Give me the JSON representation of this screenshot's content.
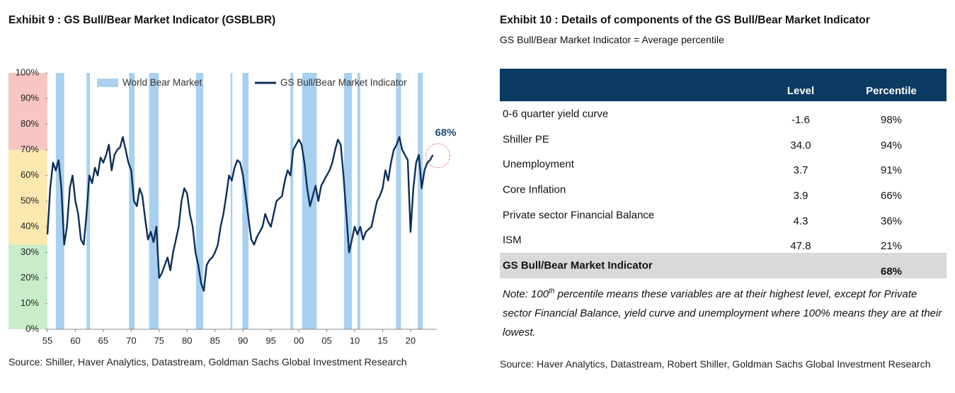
{
  "chart_data": {
    "type": "line",
    "title": "Exhibit 9 : GS Bull/Bear Market Indicator (GSBLBR)",
    "source": "Source: Shiller, Haver Analytics, Datastream, Goldman Sachs Global Investment Research",
    "xlim": [
      1955,
      2024.7
    ],
    "xticks": [
      {
        "value": 1955,
        "label": "55"
      },
      {
        "value": 1960,
        "label": "60"
      },
      {
        "value": 1965,
        "label": "65"
      },
      {
        "value": 1970,
        "label": "70"
      },
      {
        "value": 1975,
        "label": "75"
      },
      {
        "value": 1980,
        "label": "80"
      },
      {
        "value": 1985,
        "label": "85"
      },
      {
        "value": 1990,
        "label": "90"
      },
      {
        "value": 1995,
        "label": "95"
      },
      {
        "value": 2000,
        "label": "00"
      },
      {
        "value": 2005,
        "label": "05"
      },
      {
        "value": 2010,
        "label": "10"
      },
      {
        "value": 2015,
        "label": "15"
      },
      {
        "value": 2020,
        "label": "20"
      }
    ],
    "ylim": [
      0,
      100
    ],
    "yticks": [
      {
        "value": 0,
        "label": "0%"
      },
      {
        "value": 10,
        "label": "10%"
      },
      {
        "value": 20,
        "label": "20%"
      },
      {
        "value": 30,
        "label": "30%"
      },
      {
        "value": 40,
        "label": "40%"
      },
      {
        "value": 50,
        "label": "50%"
      },
      {
        "value": 60,
        "label": "60%"
      },
      {
        "value": 70,
        "label": "70%"
      },
      {
        "value": 80,
        "label": "80%"
      },
      {
        "value": 90,
        "label": "90%"
      },
      {
        "value": 100,
        "label": "100%"
      }
    ],
    "zones": [
      {
        "from": 0,
        "to": 33,
        "color": "#c9ecc9"
      },
      {
        "from": 33,
        "to": 70,
        "color": "#fde9b0"
      },
      {
        "from": 70,
        "to": 100,
        "color": "#f7c6c3"
      }
    ],
    "bear_markets": {
      "name": "World Bear Market",
      "color": "#a9d0ef",
      "ranges": [
        [
          1956.5,
          1958
        ],
        [
          1962,
          1962.6
        ],
        [
          1969.6,
          1970.6
        ],
        [
          1973.2,
          1974.9
        ],
        [
          1981.6,
          1982.9
        ],
        [
          1987.8,
          1988.1
        ],
        [
          1989.9,
          1991
        ],
        [
          1998.5,
          1999
        ],
        [
          2000.6,
          2003.2
        ],
        [
          2008.1,
          2009.5
        ],
        [
          2010.5,
          2011
        ],
        [
          2017.4,
          2018.3
        ],
        [
          2021.3,
          2022.2
        ]
      ]
    },
    "x": [
      1955,
      1955.5,
      1956,
      1956.5,
      1957,
      1957.5,
      1958,
      1958.5,
      1959,
      1959.5,
      1960,
      1960.5,
      1961,
      1961.5,
      1962,
      1962.5,
      1963,
      1963.5,
      1964,
      1964.5,
      1965,
      1965.5,
      1966,
      1966.5,
      1967,
      1967.5,
      1968,
      1968.5,
      1969,
      1969.5,
      1970,
      1970.5,
      1971,
      1971.5,
      1972,
      1972.5,
      1973,
      1973.5,
      1974,
      1974.5,
      1975,
      1975.5,
      1976,
      1976.5,
      1977,
      1977.5,
      1978,
      1978.5,
      1979,
      1979.5,
      1980,
      1980.5,
      1981,
      1981.5,
      1982,
      1982.5,
      1983,
      1983.5,
      1984,
      1984.5,
      1985,
      1985.5,
      1986,
      1986.5,
      1987,
      1987.5,
      1988,
      1988.5,
      1989,
      1989.5,
      1990,
      1990.5,
      1991,
      1991.5,
      1992,
      1992.5,
      1993,
      1993.5,
      1994,
      1994.5,
      1995,
      1995.5,
      1996,
      1996.5,
      1997,
      1997.5,
      1998,
      1998.5,
      1999,
      1999.5,
      2000,
      2000.5,
      2001,
      2001.5,
      2002,
      2002.5,
      2003,
      2003.5,
      2004,
      2004.5,
      2005,
      2005.5,
      2006,
      2006.5,
      2007,
      2007.5,
      2008,
      2008.5,
      2009,
      2009.5,
      2010,
      2010.5,
      2011,
      2011.5,
      2012,
      2012.5,
      2013,
      2013.5,
      2014,
      2014.5,
      2015,
      2015.5,
      2016,
      2016.5,
      2017,
      2017.5,
      2018,
      2018.5,
      2019,
      2019.5,
      2020,
      2020.5,
      2021,
      2021.5,
      2022,
      2022.5,
      2023,
      2023.5,
      2024
    ],
    "series": [
      {
        "name": "GS Bull/Bear Market Indicator",
        "color": "#0d2f5a",
        "values": [
          37,
          55,
          65,
          62,
          66,
          55,
          33,
          40,
          55,
          60,
          50,
          45,
          35,
          33,
          45,
          60,
          57,
          63,
          60,
          67,
          65,
          68,
          72,
          62,
          68,
          70,
          71,
          75,
          70,
          65,
          62,
          50,
          48,
          55,
          52,
          43,
          35,
          38,
          34,
          40,
          20,
          22,
          25,
          28,
          23,
          30,
          35,
          40,
          50,
          55,
          53,
          45,
          40,
          30,
          25,
          18,
          15,
          25,
          27,
          28,
          30,
          33,
          40,
          45,
          52,
          60,
          58,
          63,
          66,
          65,
          60,
          52,
          43,
          35,
          33,
          36,
          38,
          40,
          45,
          42,
          40,
          45,
          50,
          51,
          52,
          58,
          62,
          60,
          70,
          72,
          74,
          72,
          65,
          55,
          48,
          52,
          56,
          50,
          56,
          58,
          60,
          62,
          65,
          70,
          74,
          72,
          60,
          45,
          30,
          35,
          40,
          37,
          40,
          35,
          38,
          39,
          40,
          45,
          50,
          52,
          55,
          62,
          58,
          65,
          70,
          72,
          75,
          70,
          68,
          66,
          38,
          55,
          65,
          68,
          55,
          62,
          65,
          66,
          68
        ]
      }
    ],
    "annotations": [
      {
        "x": 2024,
        "y": 68,
        "label": "68%"
      }
    ]
  },
  "table": {
    "title": "Exhibit 10 : Details of components of the GS Bull/Bear Market Indicator",
    "subtitle": "GS Bull/Bear Market Indicator = Average percentile",
    "columns": [
      "Level",
      "Percentile"
    ],
    "rows": [
      {
        "label": "0-6 quarter yield curve",
        "level": "-1.6",
        "percentile": "98%"
      },
      {
        "label": "Shiller PE",
        "level": "34.0",
        "percentile": "94%"
      },
      {
        "label": "Unemployment",
        "level": "3.7",
        "percentile": "91%"
      },
      {
        "label": "Core Inflation",
        "level": "3.9",
        "percentile": "66%"
      },
      {
        "label": "Private sector Financial Balance",
        "level": "4.3",
        "percentile": "36%"
      },
      {
        "label": "ISM",
        "level": "47.8",
        "percentile": "21%"
      },
      {
        "label": "GS Bull/Bear Market Indicator",
        "percentile": "68%"
      }
    ],
    "note": {
      "before": "Note: 100",
      "sup": "th",
      "after": " percentile means these variables are at their highest level, except for Private sector Financial Balance, yield curve and unemployment where 100% means they are at their lowest."
    },
    "source": "Source: Haver Analytics, Datastream, Robert Shiller, Goldman Sachs Global Investment Research"
  }
}
